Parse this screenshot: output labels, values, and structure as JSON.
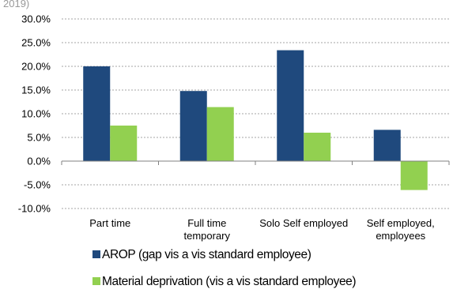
{
  "header": {
    "cropped_text": "2019)"
  },
  "chart_data": {
    "type": "bar",
    "categories": [
      [
        "Part time"
      ],
      [
        "Full time",
        "temporary"
      ],
      [
        "Solo Self employed"
      ],
      [
        "Self employed,",
        "employees"
      ]
    ],
    "series": [
      {
        "name": "AROP (gap vis a vis standard employee)",
        "color": "#1f497d",
        "values": [
          20.0,
          14.8,
          23.4,
          6.6
        ]
      },
      {
        "name": "Material deprivation (vis a vis standard employee)",
        "color": "#92d050",
        "values": [
          7.5,
          11.4,
          6.0,
          -6.1
        ]
      }
    ],
    "y_ticks": [
      "30.0%",
      "25.0%",
      "20.0%",
      "15.0%",
      "10.0%",
      "5.0%",
      "0.0%",
      "-5.0%",
      "-10.0%"
    ],
    "ylim": [
      -10,
      30
    ],
    "grid": "horizontal dotted",
    "legend_position": "bottom-left"
  }
}
